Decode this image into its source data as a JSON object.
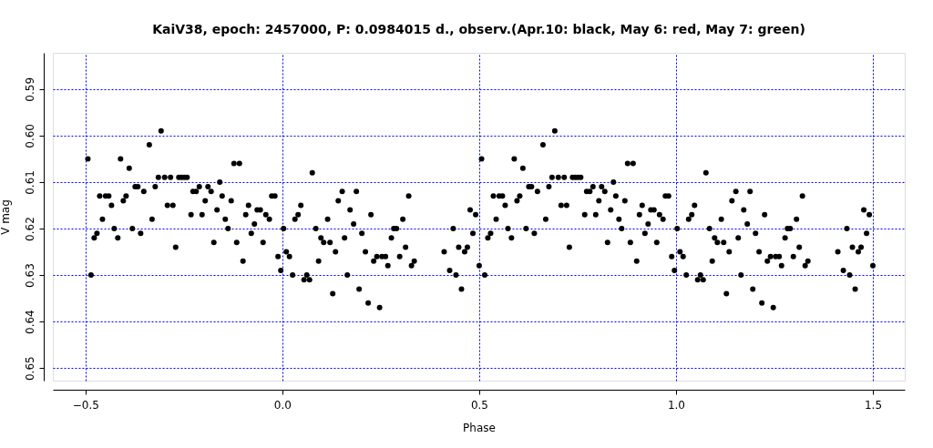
{
  "chart_data": {
    "type": "scatter",
    "title": "KaiV38, epoch: 2457000, P: 0.0984015 d., observ.(Apr.10: black, May 6: red, May 7: green)",
    "xlabel": "Phase",
    "ylabel": "V mag",
    "xlim": [
      -0.583,
      1.581
    ],
    "xticks": [
      -0.5,
      {
        "value": 0,
        "label": "0.0"
      },
      0.5,
      {
        "value": 1,
        "label": "1.0"
      },
      1.5
    ],
    "ylim": [
      0.6527,
      0.5822
    ],
    "yticks": [
      0.59,
      {
        "value": 0.6,
        "label": "0.60"
      },
      0.61,
      0.62,
      0.63,
      0.64,
      0.65
    ],
    "grid": true,
    "marker": "circle",
    "series": [
      {
        "color": "#000000",
        "x": [
          -0.494,
          -0.486,
          -0.478,
          -0.471,
          -0.464,
          -0.457,
          -0.449,
          -0.441,
          -0.434,
          -0.427,
          -0.418,
          -0.411,
          -0.404,
          -0.397,
          -0.389,
          -0.381,
          -0.374,
          -0.367,
          -0.36,
          -0.352,
          -0.338,
          -0.331,
          -0.323,
          -0.315,
          -0.308,
          -0.299,
          -0.292,
          -0.284,
          -0.278,
          -0.271,
          -0.263,
          -0.256,
          -0.249,
          -0.242,
          -0.232,
          -0.227,
          -0.219,
          -0.211,
          -0.204,
          -0.196,
          -0.189,
          -0.181,
          -0.174,
          -0.166,
          -0.159,
          -0.153,
          -0.145,
          -0.138,
          -0.13,
          -0.123,
          -0.116,
          -0.109,
          -0.1,
          -0.093,
          -0.086,
          -0.079,
          -0.071,
          -0.064,
          -0.056,
          -0.049,
          -0.042,
          -0.033,
          -0.027,
          -0.019,
          -0.011,
          -0.004,
          0.003,
          0.01,
          0.018,
          0.026,
          0.032,
          0.04,
          0.047,
          0.055,
          0.062,
          0.069,
          0.076,
          0.085,
          0.092,
          0.098,
          0.105,
          0.115,
          0.121,
          0.128,
          0.135,
          0.142,
          0.152,
          0.158,
          0.165,
          0.172,
          0.181,
          0.188,
          0.195,
          0.202,
          0.211,
          0.218,
          0.225,
          0.232,
          0.24,
          0.247,
          0.253,
          0.262,
          0.268,
          0.277,
          0.283,
          0.29,
          0.298,
          0.306,
          0.313,
          0.321,
          0.328,
          0.335,
          0.411,
          0.425,
          0.434,
          0.441,
          0.448,
          0.455,
          0.463,
          0.47,
          0.477,
          0.484,
          0.491,
          0.5,
          0.506,
          0.514,
          0.522,
          0.529,
          0.536,
          0.543,
          0.551,
          0.559,
          0.566,
          0.573,
          0.582,
          0.589,
          0.596,
          0.603,
          0.611,
          0.619,
          0.626,
          0.633,
          0.64,
          0.648,
          0.662,
          0.669,
          0.677,
          0.685,
          0.692,
          0.701,
          0.708,
          0.716,
          0.722,
          0.729,
          0.737,
          0.744,
          0.751,
          0.758,
          0.768,
          0.773,
          0.781,
          0.789,
          0.796,
          0.804,
          0.811,
          0.819,
          0.826,
          0.834,
          0.841,
          0.847,
          0.855,
          0.862,
          0.87,
          0.877,
          0.884,
          0.891,
          0.9,
          0.907,
          0.914,
          0.921,
          0.929,
          0.936,
          0.944,
          0.951,
          0.958,
          0.967,
          0.973,
          0.981,
          0.989,
          0.996,
          1.003,
          1.01,
          1.018,
          1.026,
          1.032,
          1.04,
          1.047,
          1.055,
          1.062,
          1.069,
          1.076,
          1.085,
          1.092,
          1.098,
          1.105,
          1.115,
          1.121,
          1.128,
          1.135,
          1.142,
          1.152,
          1.158,
          1.165,
          1.172,
          1.181,
          1.188,
          1.195,
          1.202,
          1.211,
          1.218,
          1.225,
          1.232,
          1.24,
          1.247,
          1.253,
          1.262,
          1.268,
          1.277,
          1.283,
          1.29,
          1.298,
          1.306,
          1.313,
          1.321,
          1.328,
          1.335,
          1.411,
          1.425,
          1.434,
          1.441,
          1.448,
          1.455,
          1.463,
          1.47,
          1.477,
          1.484,
          1.491,
          1.5
        ],
        "values": [
          0.605,
          0.63,
          0.622,
          0.621,
          0.613,
          0.618,
          0.613,
          0.613,
          0.615,
          0.62,
          0.622,
          0.605,
          0.614,
          0.613,
          0.607,
          0.62,
          0.611,
          0.611,
          0.621,
          0.612,
          0.602,
          0.618,
          0.611,
          0.609,
          0.599,
          0.609,
          0.615,
          0.609,
          0.615,
          0.624,
          0.609,
          0.609,
          0.609,
          0.609,
          0.617,
          0.612,
          0.612,
          0.611,
          0.617,
          0.614,
          0.611,
          0.612,
          0.623,
          0.616,
          0.61,
          0.613,
          0.618,
          0.62,
          0.614,
          0.606,
          0.623,
          0.606,
          0.627,
          0.617,
          0.615,
          0.621,
          0.619,
          0.616,
          0.616,
          0.623,
          0.617,
          0.618,
          0.613,
          0.613,
          0.626,
          0.629,
          0.62,
          0.625,
          0.626,
          0.63,
          0.618,
          0.617,
          0.615,
          0.631,
          0.63,
          0.631,
          0.608,
          0.62,
          0.627,
          0.622,
          0.623,
          0.618,
          0.623,
          0.634,
          0.625,
          0.614,
          0.612,
          0.622,
          0.63,
          0.616,
          0.619,
          0.612,
          0.633,
          0.621,
          0.625,
          0.636,
          0.617,
          0.627,
          0.626,
          0.637,
          0.626,
          0.626,
          0.628,
          0.622,
          0.62,
          0.62,
          0.626,
          0.618,
          0.624,
          0.613,
          0.628,
          0.627,
          0.625,
          0.629,
          0.62,
          0.63,
          0.624,
          0.633,
          0.625,
          0.624,
          0.616,
          0.621,
          0.617,
          0.628,
          0.605,
          0.63,
          0.622,
          0.621,
          0.613,
          0.618,
          0.613,
          0.613,
          0.615,
          0.62,
          0.622,
          0.605,
          0.614,
          0.613,
          0.607,
          0.62,
          0.611,
          0.611,
          0.621,
          0.612,
          0.602,
          0.618,
          0.611,
          0.609,
          0.599,
          0.609,
          0.615,
          0.609,
          0.615,
          0.624,
          0.609,
          0.609,
          0.609,
          0.609,
          0.617,
          0.612,
          0.612,
          0.611,
          0.617,
          0.614,
          0.611,
          0.612,
          0.623,
          0.616,
          0.61,
          0.613,
          0.618,
          0.62,
          0.614,
          0.606,
          0.623,
          0.606,
          0.627,
          0.617,
          0.615,
          0.621,
          0.619,
          0.616,
          0.616,
          0.623,
          0.617,
          0.618,
          0.613,
          0.613,
          0.626,
          0.629,
          0.62,
          0.625,
          0.626,
          0.63,
          0.618,
          0.617,
          0.615,
          0.631,
          0.63,
          0.631,
          0.608,
          0.62,
          0.627,
          0.622,
          0.623,
          0.618,
          0.623,
          0.634,
          0.625,
          0.614,
          0.612,
          0.622,
          0.63,
          0.616,
          0.619,
          0.612,
          0.633,
          0.621,
          0.625,
          0.636,
          0.617,
          0.627,
          0.626,
          0.637,
          0.626,
          0.626,
          0.628,
          0.622,
          0.62,
          0.62,
          0.626,
          0.618,
          0.624,
          0.613,
          0.628,
          0.627,
          0.625,
          0.629,
          0.62,
          0.63,
          0.624,
          0.633,
          0.625,
          0.624,
          0.616,
          0.621,
          0.617,
          0.628
        ]
      }
    ]
  }
}
